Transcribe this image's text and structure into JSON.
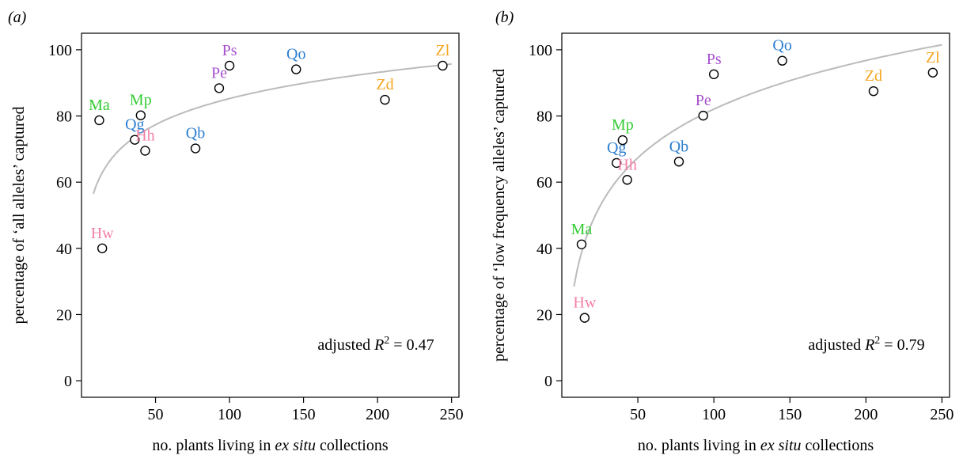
{
  "chart_data": [
    {
      "type": "scatter",
      "panel_label": "(a)",
      "xlabel_parts": [
        "no. plants living in ",
        "ex situ",
        " collections"
      ],
      "ylabel": "percentage of ‘all alleles’ captured",
      "xlim": [
        0,
        255
      ],
      "ylim": [
        -5,
        105
      ],
      "xticks": [
        50,
        100,
        150,
        200,
        250
      ],
      "yticks": [
        0,
        20,
        40,
        60,
        80,
        100
      ],
      "annotation": {
        "prefix": "adjusted ",
        "symbol": "R",
        "superscript": "2",
        "suffix": " = 0.47"
      },
      "trend": {
        "type": "logarithmic",
        "color": "#bbbbbb",
        "x_start": 8,
        "x_end": 250,
        "y_start": 56.5,
        "y_end": 95.7
      },
      "points": [
        {
          "label": "Ma",
          "x": 12,
          "y": 78.7,
          "color": "#33cc33"
        },
        {
          "label": "Hw",
          "x": 14,
          "y": 40,
          "color": "#f47fa8"
        },
        {
          "label": "Mp",
          "x": 40,
          "y": 80.2,
          "color": "#33cc33"
        },
        {
          "label": "Qg",
          "x": 36,
          "y": 72.8,
          "color": "#2b7ecf"
        },
        {
          "label": "Hh",
          "x": 43,
          "y": 69.5,
          "color": "#f47fa8"
        },
        {
          "label": "Qb",
          "x": 77,
          "y": 70.2,
          "color": "#2b7ecf"
        },
        {
          "label": "Pe",
          "x": 93,
          "y": 88.4,
          "color": "#a64fcf"
        },
        {
          "label": "Ps",
          "x": 100,
          "y": 95.2,
          "color": "#a64fcf"
        },
        {
          "label": "Qo",
          "x": 145,
          "y": 94.1,
          "color": "#2b7ecf"
        },
        {
          "label": "Zd",
          "x": 205,
          "y": 84.9,
          "color": "#f5a623"
        },
        {
          "label": "Zl",
          "x": 244,
          "y": 95.2,
          "color": "#f5a623"
        }
      ]
    },
    {
      "type": "scatter",
      "panel_label": "(b)",
      "xlabel_parts": [
        "no. plants living in ",
        "ex situ",
        " collections"
      ],
      "ylabel": "percentage of ‘low frequency alleles’ captured",
      "xlim": [
        0,
        255
      ],
      "ylim": [
        -5,
        105
      ],
      "xticks": [
        50,
        100,
        150,
        200,
        250
      ],
      "yticks": [
        0,
        20,
        40,
        60,
        80,
        100
      ],
      "annotation": {
        "prefix": "adjusted ",
        "symbol": "R",
        "superscript": "2",
        "suffix": " = 0.79"
      },
      "trend": {
        "type": "logarithmic",
        "color": "#bbbbbb",
        "x_start": 8,
        "x_end": 250,
        "y_start": 28.5,
        "y_end": 101.5
      },
      "points": [
        {
          "label": "Ma",
          "x": 13,
          "y": 41.2,
          "color": "#33cc33"
        },
        {
          "label": "Hw",
          "x": 15,
          "y": 19,
          "color": "#f47fa8"
        },
        {
          "label": "Mp",
          "x": 40,
          "y": 72.7,
          "color": "#33cc33"
        },
        {
          "label": "Qg",
          "x": 36,
          "y": 65.8,
          "color": "#2b7ecf"
        },
        {
          "label": "Hh",
          "x": 43,
          "y": 60.7,
          "color": "#f47fa8"
        },
        {
          "label": "Qb",
          "x": 77,
          "y": 66.2,
          "color": "#2b7ecf"
        },
        {
          "label": "Pe",
          "x": 93,
          "y": 80.1,
          "color": "#a64fcf"
        },
        {
          "label": "Ps",
          "x": 100,
          "y": 92.6,
          "color": "#a64fcf"
        },
        {
          "label": "Qo",
          "x": 145,
          "y": 96.7,
          "color": "#2b7ecf"
        },
        {
          "label": "Zd",
          "x": 205,
          "y": 87.5,
          "color": "#f5a623"
        },
        {
          "label": "Zl",
          "x": 244,
          "y": 93.1,
          "color": "#f5a623"
        }
      ]
    }
  ]
}
